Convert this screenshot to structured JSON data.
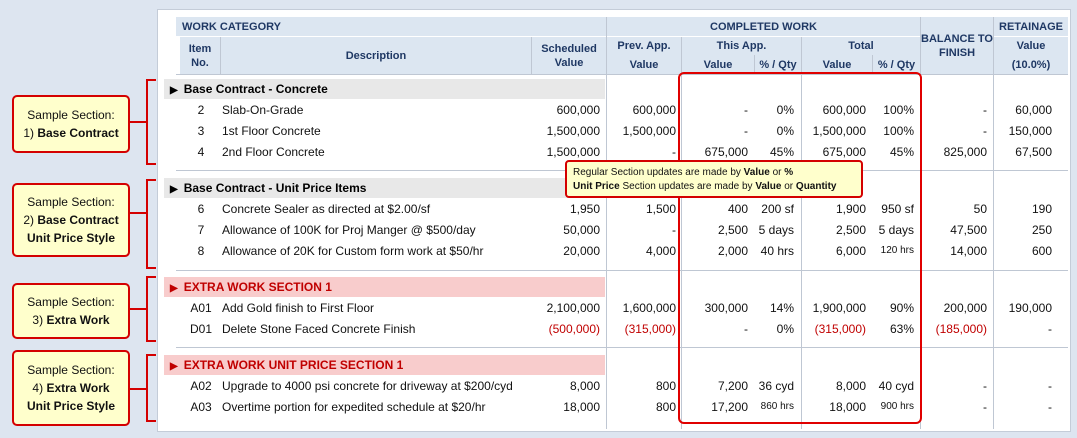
{
  "header": {
    "work_category": "WORK CATEGORY",
    "completed_work": "COMPLETED WORK",
    "balance_to_finish": "BALANCE TO FINISH",
    "retainage": "RETAINAGE",
    "item_no": "Item No.",
    "description": "Description",
    "scheduled_value": "Scheduled Value",
    "prev_app": "Prev. App.",
    "prev_app_value": "Value",
    "this_app": "This App.",
    "this_value": "Value",
    "this_pct": "% / Qty",
    "total": "Total",
    "total_value": "Value",
    "total_pct": "% / Qty",
    "retainage_value": "Value",
    "retainage_pct": "(10.0%)"
  },
  "callouts": [
    {
      "line1": "Sample Section:",
      "line2_num": "1)",
      "line2_bold": "Base Contract",
      "line3": ""
    },
    {
      "line1": "Sample Section:",
      "line2_num": "2)",
      "line2_bold": "Base Contract",
      "line3": "Unit Price Style"
    },
    {
      "line1": "Sample Section:",
      "line2_num": "3)",
      "line2_bold": "Extra Work",
      "line3": ""
    },
    {
      "line1": "Sample Section:",
      "line2_num": "4)",
      "line2_bold": "Extra Work",
      "line3": "Unit Price Style"
    }
  ],
  "tooltip": {
    "l1_pre": "Regular Section updates are made by ",
    "l1_b1": "Value",
    "l1_mid": " or ",
    "l1_b2": "%",
    "l2_b0": "Unit Price",
    "l2_pre": " Section updates are made by ",
    "l2_b1": "Value",
    "l2_mid": " or ",
    "l2_b2": "Quantity"
  },
  "sections": [
    {
      "title": "Base Contract - Concrete",
      "rows": [
        {
          "no": "2",
          "desc": "Slab-On-Grade",
          "sched": "600,000",
          "prev": "600,000",
          "this_val": "-",
          "this_pct": "0%",
          "tot_val": "600,000",
          "tot_pct": "100%",
          "bal": "-",
          "ret": "60,000"
        },
        {
          "no": "3",
          "desc": "1st Floor Concrete",
          "sched": "1,500,000",
          "prev": "1,500,000",
          "this_val": "-",
          "this_pct": "0%",
          "tot_val": "1,500,000",
          "tot_pct": "100%",
          "bal": "-",
          "ret": "150,000"
        },
        {
          "no": "4",
          "desc": "2nd Floor Concrete",
          "sched": "1,500,000",
          "prev": "-",
          "this_val": "675,000",
          "this_pct": "45%",
          "tot_val": "675,000",
          "tot_pct": "45%",
          "bal": "825,000",
          "ret": "67,500"
        }
      ]
    },
    {
      "title": "Base Contract - Unit Price Items",
      "rows": [
        {
          "no": "6",
          "desc": "Concrete Sealer as directed at $2.00/sf",
          "sched": "1,950",
          "prev": "1,500",
          "this_val": "400",
          "this_pct": "200 sf",
          "tot_val": "1,900",
          "tot_pct": "950 sf",
          "bal": "50",
          "ret": "190"
        },
        {
          "no": "7",
          "desc": "Allowance of 100K for Proj Manger @ $500/day",
          "sched": "50,000",
          "prev": "-",
          "this_val": "2,500",
          "this_pct": "5 days",
          "tot_val": "2,500",
          "tot_pct": "5 days",
          "bal": "47,500",
          "ret": "250"
        },
        {
          "no": "8",
          "desc": "Allowance of 20K for Custom form work at $50/hr",
          "sched": "20,000",
          "prev": "4,000",
          "this_val": "2,000",
          "this_pct": "40 hrs",
          "tot_val": "6,000",
          "tot_pct": "120 hrs",
          "bal": "14,000",
          "ret": "600"
        }
      ]
    },
    {
      "title": "EXTRA WORK SECTION 1",
      "rows": [
        {
          "no": "A01",
          "desc": "Add Gold finish to First Floor",
          "sched": "2,100,000",
          "prev": "1,600,000",
          "this_val": "300,000",
          "this_pct": "14%",
          "tot_val": "1,900,000",
          "tot_pct": "90%",
          "bal": "200,000",
          "ret": "190,000"
        },
        {
          "no": "D01",
          "desc": "Delete Stone Faced Concrete Finish",
          "sched": "(500,000)",
          "prev": "(315,000)",
          "this_val": "-",
          "this_pct": "0%",
          "tot_val": "(315,000)",
          "tot_pct": "63%",
          "bal": "(185,000)",
          "ret": "-"
        }
      ]
    },
    {
      "title": "EXTRA WORK UNIT PRICE SECTION 1",
      "rows": [
        {
          "no": "A02",
          "desc": "Upgrade to 4000 psi concrete for driveway at $200/cyd",
          "sched": "8,000",
          "prev": "800",
          "this_val": "7,200",
          "this_pct": "36 cyd",
          "tot_val": "8,000",
          "tot_pct": "40 cyd",
          "bal": "-",
          "ret": "-"
        },
        {
          "no": "A03",
          "desc": "Overtime portion for expedited schedule at $20/hr",
          "sched": "18,000",
          "prev": "800",
          "this_val": "17,200",
          "this_pct": "860 hrs",
          "tot_val": "18,000",
          "tot_pct": "900 hrs",
          "bal": "-",
          "ret": "-"
        }
      ]
    }
  ]
}
